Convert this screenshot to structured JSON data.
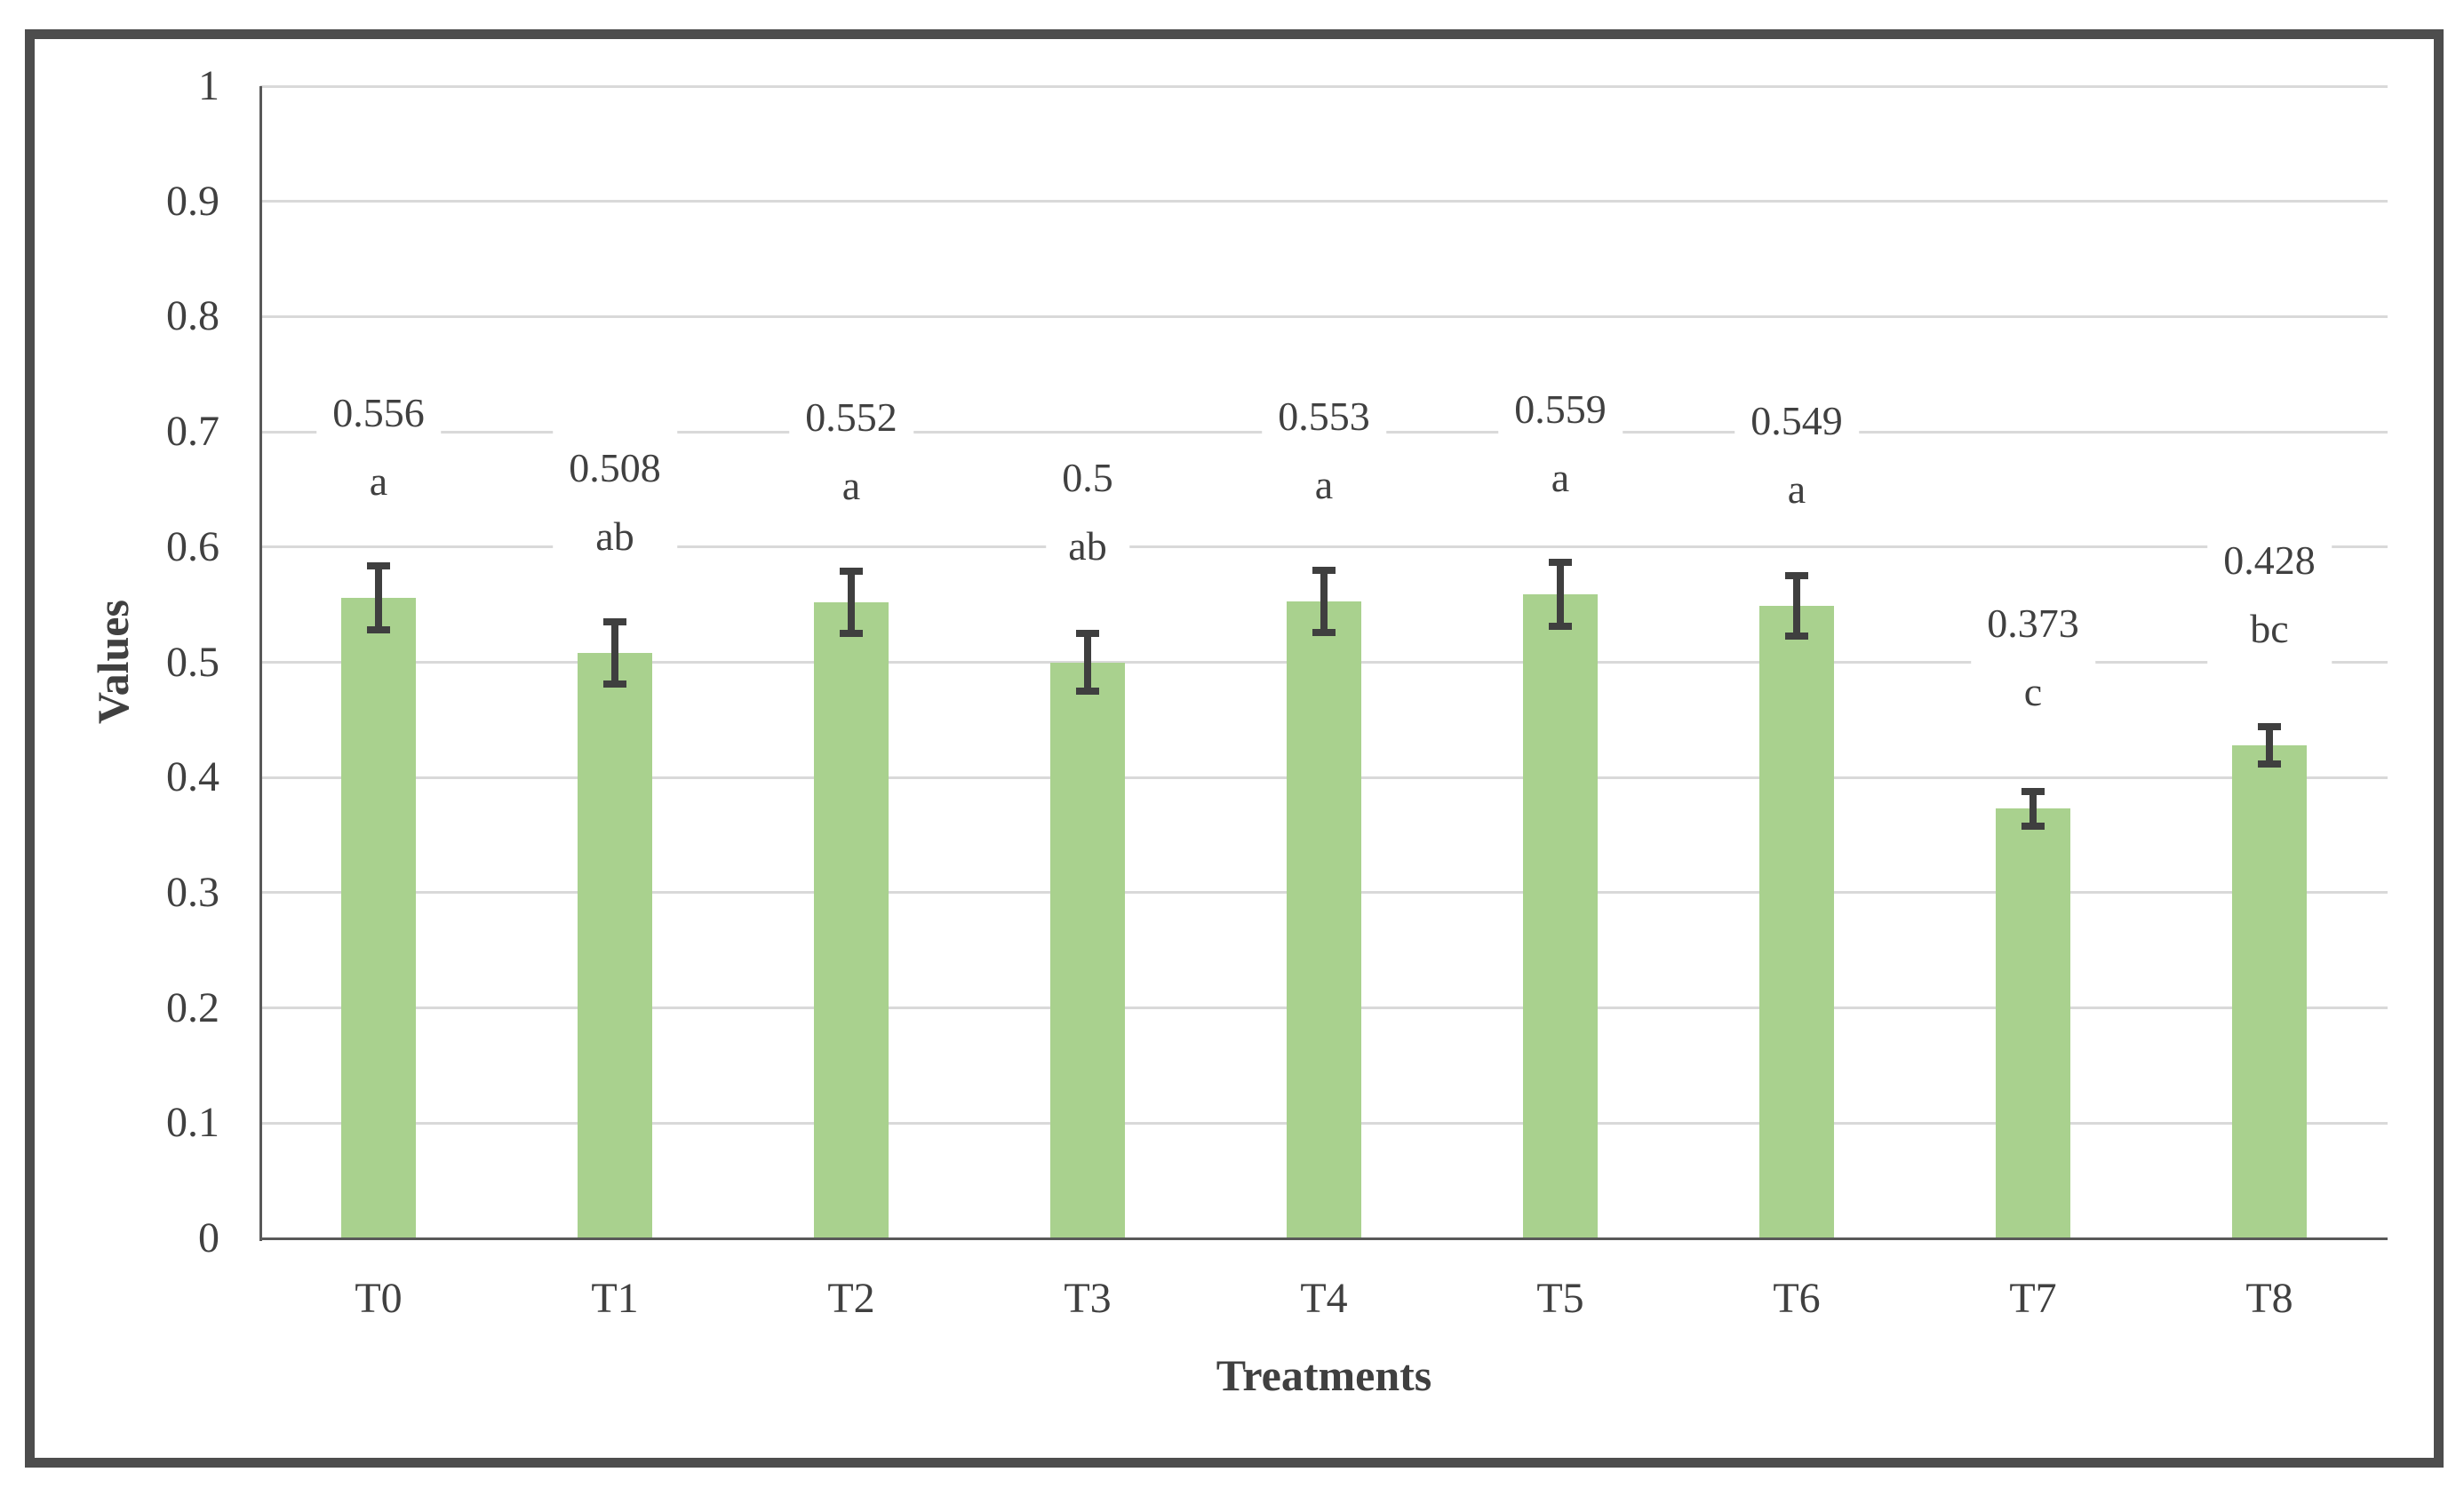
{
  "chart_data": {
    "type": "bar",
    "title": "",
    "xlabel": "Treatments",
    "ylabel": "Values",
    "categories": [
      "T0",
      "T1",
      "T2",
      "T3",
      "T4",
      "T5",
      "T6",
      "T7",
      "T8"
    ],
    "values": [
      0.556,
      0.508,
      0.552,
      0.5,
      0.553,
      0.559,
      0.549,
      0.373,
      0.428
    ],
    "data_labels": [
      "0.556",
      "0.508",
      "0.552",
      "0.5",
      "0.553",
      "0.559",
      "0.549",
      "0.373",
      "0.428"
    ],
    "significance_letters": [
      "a",
      "ab",
      "a",
      "ab",
      "a",
      "a",
      "a",
      "c",
      "bc"
    ],
    "error_bars": [
      0.028,
      0.027,
      0.027,
      0.025,
      0.027,
      0.028,
      0.026,
      0.015,
      0.016
    ],
    "ylim": [
      0,
      1
    ],
    "ytick_step": 0.1,
    "ytick_labels_top_to_bottom": [
      "1",
      "0.9",
      "0.8",
      "0.7",
      "0.6",
      "0.5",
      "0.4",
      "0.3",
      "0.2",
      "0.1",
      "0"
    ],
    "grid": true,
    "legend": "none",
    "colors": {
      "bar": "#a9d18e",
      "error_bar": "#3f3f3f",
      "gridline": "#d9d9d9",
      "axis": "#595959",
      "text": "#404040",
      "frame_border": "#4d4d4d",
      "background": "#ffffff"
    }
  }
}
